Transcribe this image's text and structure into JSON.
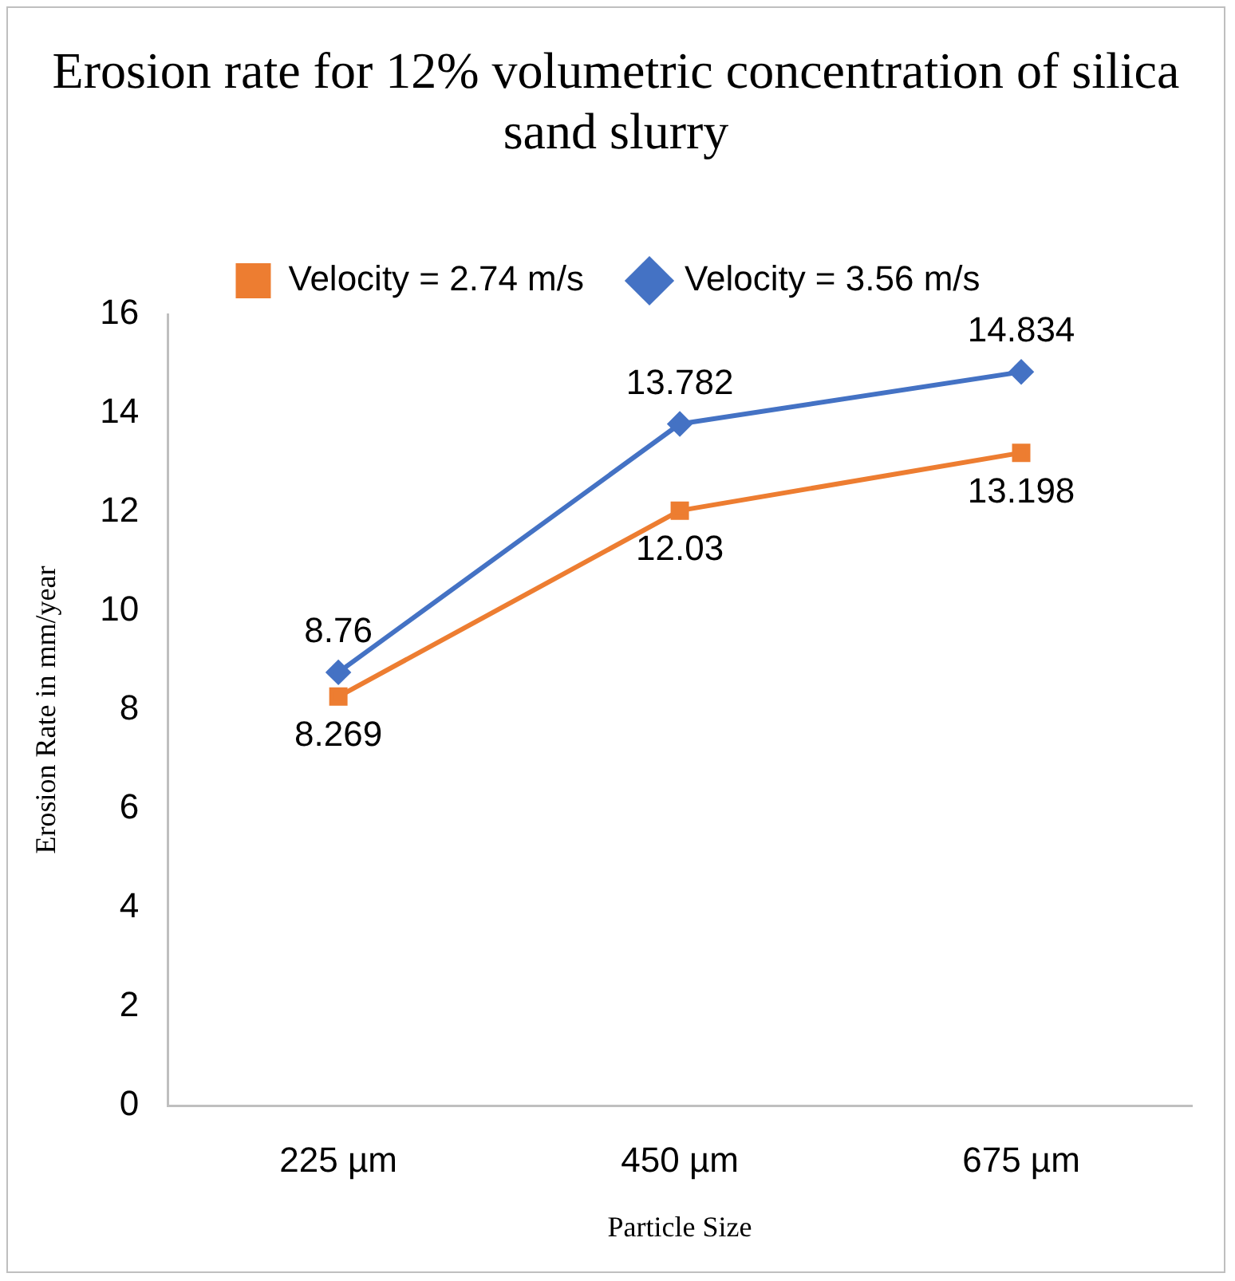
{
  "chart_data": {
    "type": "line",
    "title": "Erosion rate for 12% volumetric concentration of silica sand slurry",
    "xlabel": "Particle Size",
    "ylabel": "Erosion Rate in mm/year",
    "categories": [
      "225 µm",
      "450 µm",
      "675 µm"
    ],
    "series": [
      {
        "name": "Velocity = 2.74 m/s",
        "color": "#ed7d31",
        "marker": "square",
        "values": [
          8.269,
          12.03,
          13.198
        ]
      },
      {
        "name": "Velocity = 3.56 m/s",
        "color": "#4472c4",
        "marker": "diamond",
        "values": [
          8.76,
          13.782,
          14.834
        ]
      }
    ],
    "ylim": [
      0,
      16
    ],
    "yticks": [
      0,
      2,
      4,
      6,
      8,
      10,
      12,
      14,
      16
    ],
    "grid": false,
    "legend": "top",
    "data_labels": true,
    "line_style": "solid"
  }
}
